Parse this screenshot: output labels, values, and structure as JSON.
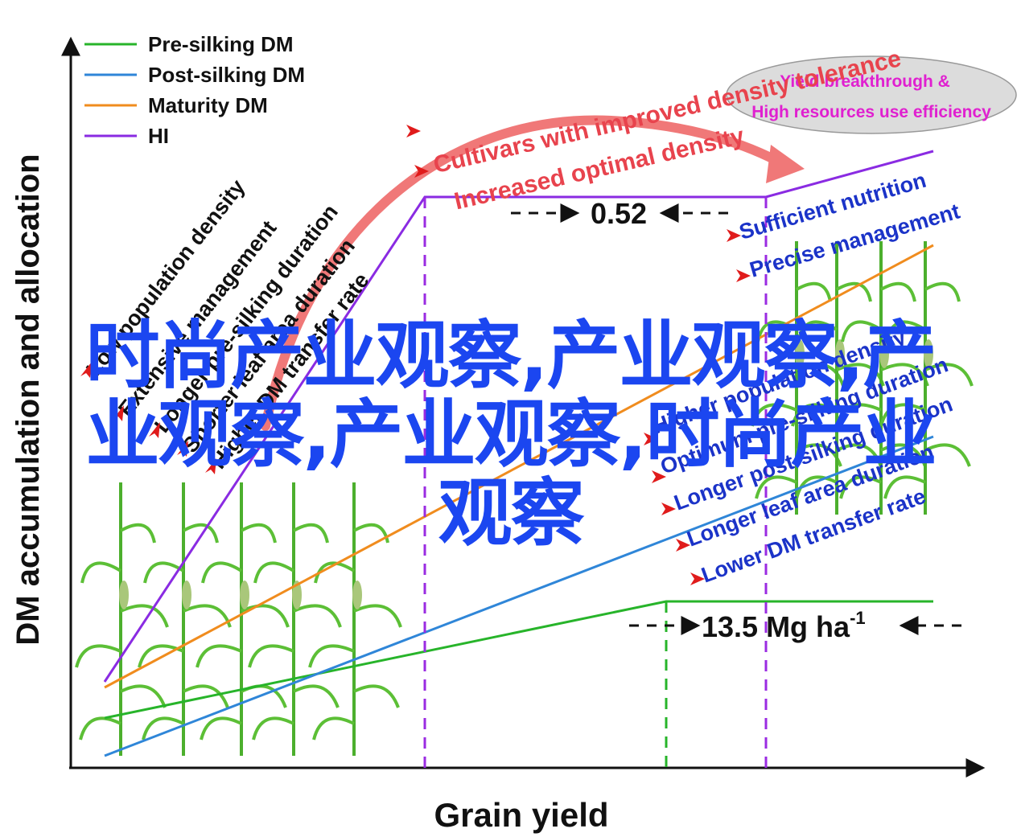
{
  "chart_data": {
    "type": "line",
    "xlabel": "Grain yield",
    "ylabel": "DM accumulation and allocation",
    "series": [
      {
        "name": "Pre-silking DM",
        "color": "#27b42a"
      },
      {
        "name": "Post-silking DM",
        "color": "#2f86d8"
      },
      {
        "name": "Maturity DM",
        "color": "#f08c1e"
      },
      {
        "name": "HI",
        "color": "#8a2be2"
      }
    ],
    "annotations": {
      "hi_plateau": "0.52",
      "yield_threshold": "13.5 Mg ha",
      "yield_threshold_sup": "-1",
      "top_arrow": [
        "Cultivars with improved density tolerance",
        "Increased optimal density"
      ],
      "ellipse": [
        "Yield breakthrough &",
        "High resources use efficiency"
      ],
      "left_factors": [
        "Low population density",
        "Extensive management",
        "Longer pre-silking duration",
        "Shorter leaf area duration",
        "Higher DM transfer rate"
      ],
      "right_factors_top": [
        "Sufficient nutrition",
        "Precise management"
      ],
      "right_factors_bottom": [
        "Higher population density",
        "Optimum pre-silking duration",
        "Longer post-silking duration",
        "Longer leaf area duration",
        "Lower DM transfer rate"
      ]
    },
    "colors": {
      "annotation_red": "#e8434d",
      "factor_blue": "#1b33c8",
      "ellipse_text": "#e020d0",
      "arrow_fill": "#f07878"
    }
  },
  "watermark": {
    "line1": "时尚产业观察,产业观察,产",
    "line2": "业观察,产业观察,时尚产业",
    "line3": "观察"
  }
}
